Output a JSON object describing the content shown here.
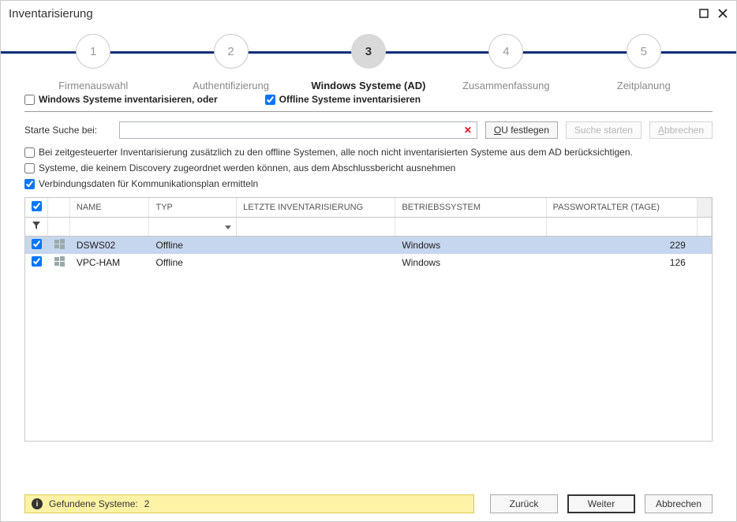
{
  "window": {
    "title": "Inventarisierung"
  },
  "wizard": {
    "steps": [
      {
        "num": "1",
        "label": "Firmenauswahl",
        "current": false
      },
      {
        "num": "2",
        "label": "Authentifizierung",
        "current": false
      },
      {
        "num": "3",
        "label": "Windows Systeme (AD)",
        "current": true
      },
      {
        "num": "4",
        "label": "Zusammenfassung",
        "current": false
      },
      {
        "num": "5",
        "label": "Zeitplanung",
        "current": false
      }
    ]
  },
  "checks": {
    "inventWindows": {
      "label": "Windows Systeme inventarisieren, oder",
      "checked": false
    },
    "inventOffline": {
      "label": "Offline Systeme inventarisieren",
      "checked": true
    }
  },
  "search": {
    "label": "Starte Suche bei:",
    "value": "",
    "ouBtn_pre": "O",
    "ouBtn_post": "U festlegen",
    "startBtn": "Suche starten",
    "cancelBtn_pre": "A",
    "cancelBtn_post": "bbrechen"
  },
  "options": {
    "opt1": {
      "label": "Bei zeitgesteuerter Inventarisierung zusätzlich zu den offline Systemen, alle noch nicht inventarisierten Systeme aus dem AD berücksichtigen.",
      "checked": false
    },
    "opt2": {
      "label": "Systeme, die keinem Discovery zugeordnet werden können, aus dem Abschlussbericht ausnehmen",
      "checked": false
    },
    "opt3": {
      "label": "Verbindungsdaten für Kommunikationsplan ermitteln",
      "checked": true
    }
  },
  "table": {
    "columns": {
      "name": "NAME",
      "typ": "TYP",
      "letzte": "LETZTE INVENTARISIERUNG",
      "os": "BETRIEBSSYSTEM",
      "pw": "PASSWORTALTER (TAGE)"
    },
    "rows": [
      {
        "checked": true,
        "name": "DSWS02",
        "typ": "Offline",
        "letzte": "",
        "os": "Windows",
        "pw": "229",
        "selected": true
      },
      {
        "checked": true,
        "name": "VPC-HAM",
        "typ": "Offline",
        "letzte": "",
        "os": "Windows",
        "pw": "126",
        "selected": false
      }
    ]
  },
  "status": {
    "label": "Gefundene Systeme:",
    "count": "2"
  },
  "footer": {
    "back": "Zurück",
    "next": "Weiter",
    "cancel": "Abbrechen"
  },
  "colors": {
    "accent": "#0b2e78",
    "stepCurrentBg": "#d9d9d9",
    "rowSelected": "#c7d6ef",
    "statusBg": "#fdf2a6"
  }
}
